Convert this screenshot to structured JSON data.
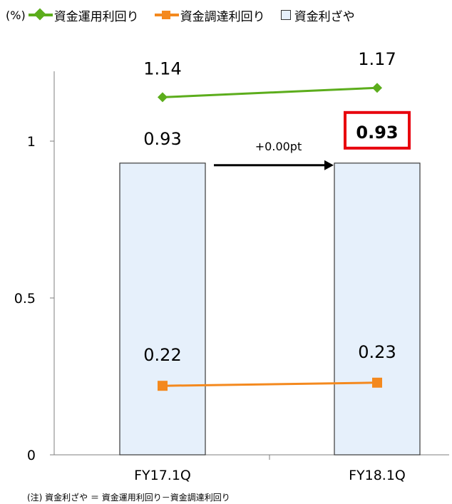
{
  "legend": {
    "unit": "(%)",
    "items": [
      {
        "label": "資金運用利回り",
        "color": "#5cad1c",
        "marker": "diamond"
      },
      {
        "label": "資金調達利回り",
        "color": "#f4891e",
        "marker": "square"
      },
      {
        "label": "資金利ざや",
        "color": "#e6f0fb",
        "marker": "box"
      }
    ]
  },
  "chart_data": {
    "type": "bar",
    "categories": [
      "FY17.1Q",
      "FY18.1Q"
    ],
    "ylim": [
      0,
      1.2
    ],
    "yticks": [
      0,
      0.5,
      1
    ],
    "ytick_labels": [
      "0",
      "0.5",
      "1"
    ],
    "series": [
      {
        "name": "資金利ざや",
        "kind": "bar",
        "values": [
          0.93,
          0.93
        ],
        "labels": [
          "0.93",
          "0.93"
        ],
        "color": "#e6f0fb"
      },
      {
        "name": "資金運用利回り",
        "kind": "line",
        "values": [
          1.14,
          1.17
        ],
        "labels": [
          "1.14",
          "1.17"
        ],
        "color": "#5cad1c",
        "marker": "diamond"
      },
      {
        "name": "資金調達利回り",
        "kind": "line",
        "values": [
          0.22,
          0.23
        ],
        "labels": [
          "0.22",
          "0.23"
        ],
        "color": "#f4891e",
        "marker": "square"
      }
    ],
    "annotations": {
      "change": "+0.00pt",
      "highlight_color": "#e8000d"
    }
  },
  "footnote": "(注)  資金利ざや ＝ 資金運用利回り－資金調達利回り"
}
